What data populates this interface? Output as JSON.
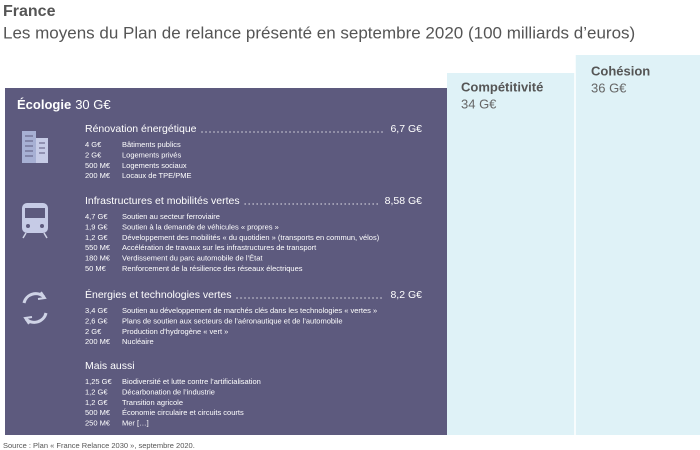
{
  "header": {
    "title": "France",
    "subtitle": "Les moyens du Plan de relance présenté en septembre 2020 (100 milliards d’euros)"
  },
  "ecologie": {
    "name": "Écologie",
    "amount": "30 G€",
    "sections": [
      {
        "title": "Rénovation énergétique",
        "amount": "6,7 G€",
        "items": [
          {
            "amount": "4 G€",
            "label": "Bâtiments publics"
          },
          {
            "amount": "2 G€",
            "label": "Logements privés"
          },
          {
            "amount": "500 M€",
            "label": "Logements sociaux"
          },
          {
            "amount": "200 M€",
            "label": "Locaux de TPE/PME"
          }
        ]
      },
      {
        "title": "Infrastructures et mobilités vertes",
        "amount": "8,58 G€",
        "items": [
          {
            "amount": "4,7 G€",
            "label": "Soutien au secteur ferroviaire"
          },
          {
            "amount": "1,9 G€",
            "label": "Soutien à la demande de véhicules « propres »"
          },
          {
            "amount": "1,2 G€",
            "label": "Développement des mobilités « du quotidien » (transports en commun, vélos)"
          },
          {
            "amount": "550 M€",
            "label": "Accélération de travaux sur les infrastructures de transport"
          },
          {
            "amount": "180 M€",
            "label": "Verdissement du parc automobile de l’État"
          },
          {
            "amount": "50 M€",
            "label": "Renforcement de la résilience des réseaux électriques"
          }
        ]
      },
      {
        "title": "Énergies et technologies vertes",
        "amount": "8,2 G€",
        "items": [
          {
            "amount": "3,4 G€",
            "label": "Soutien au développement de marchés clés dans les technologies « vertes »"
          },
          {
            "amount": "2,6 G€",
            "label": "Plans de soutien aux secteurs de l’aéronautique et de l’automobile"
          },
          {
            "amount": "2 G€",
            "label": "Production d’hydrogène « vert »"
          },
          {
            "amount": "200 M€",
            "label": "Nucléaire"
          }
        ]
      },
      {
        "title": "Mais aussi",
        "items": [
          {
            "amount": "1,25 G€",
            "label": "Biodiversité et lutte contre l’artificialisation"
          },
          {
            "amount": "1,2 G€",
            "label": "Décarbonation de l’industrie"
          },
          {
            "amount": "1,2 G€",
            "label": "Transition agricole"
          },
          {
            "amount": "500 M€",
            "label": "Économie circulaire et circuits courts"
          },
          {
            "amount": "250 M€",
            "label": "Mer […]"
          }
        ]
      }
    ]
  },
  "columns": [
    {
      "name": "Compétitivité",
      "amount": "34 G€"
    },
    {
      "name": "Cohésion",
      "amount": "36 G€"
    }
  ],
  "source": "Source : Plan « France Relance 2030 », septembre 2020."
}
